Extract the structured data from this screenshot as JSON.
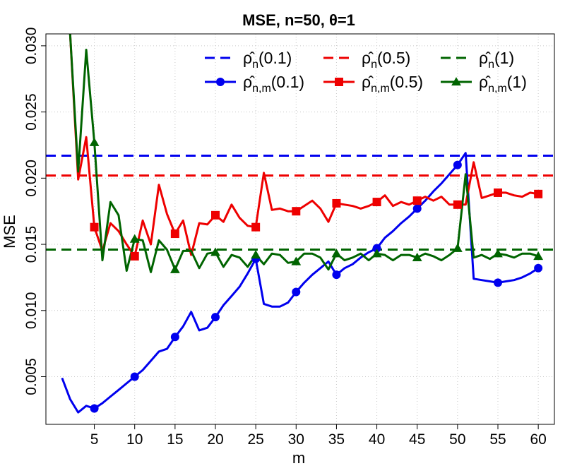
{
  "chart_data": {
    "type": "line",
    "title": "MSE, n=50, θ=1",
    "xlabel": "m",
    "ylabel": "MSE",
    "xlim": [
      -1,
      62
    ],
    "ylim": [
      0.0014,
      0.0309
    ],
    "xticks": [
      5,
      10,
      15,
      20,
      25,
      30,
      35,
      40,
      45,
      50,
      55,
      60
    ],
    "xtick_labels": [
      "5",
      "10",
      "15",
      "20",
      "25",
      "30",
      "35",
      "40",
      "45",
      "50",
      "55",
      "60"
    ],
    "yticks": [
      0.005,
      0.01,
      0.015,
      0.02,
      0.025,
      0.03
    ],
    "ytick_labels": [
      "0.005",
      "0.010",
      "0.015",
      "0.020",
      "0.025",
      "0.030"
    ],
    "grid": true,
    "legend_position": "top-right",
    "colors": {
      "blue": "#0000ee",
      "red": "#ee0000",
      "green": "#006400"
    },
    "reference_lines": [
      {
        "name": "ρ̂n(0.1)",
        "legend_base": "ρ̂",
        "legend_sub": "n",
        "legend_arg": "(0.1)",
        "color": "#0000ee",
        "y": 0.0217
      },
      {
        "name": "ρ̂n(0.5)",
        "legend_base": "ρ̂",
        "legend_sub": "n",
        "legend_arg": "(0.5)",
        "color": "#ee0000",
        "y": 0.0202
      },
      {
        "name": "ρ̂n(1)",
        "legend_base": "ρ̂",
        "legend_sub": "n",
        "legend_arg": "(1)",
        "color": "#006400",
        "y": 0.0146
      }
    ],
    "series": [
      {
        "name": "ρ̂n,m(0.1)",
        "legend_base": "ρ̂",
        "legend_sub": "n,m",
        "legend_arg": "(0.1)",
        "color": "#0000ee",
        "marker": "circle",
        "x": [
          1,
          2,
          3,
          4,
          5,
          6,
          7,
          8,
          9,
          10,
          11,
          12,
          13,
          14,
          15,
          16,
          17,
          18,
          19,
          20,
          21,
          22,
          23,
          24,
          25,
          26,
          27,
          28,
          29,
          30,
          31,
          32,
          33,
          34,
          35,
          36,
          37,
          38,
          39,
          40,
          41,
          42,
          43,
          44,
          45,
          46,
          47,
          48,
          49,
          50,
          51,
          52,
          53,
          54,
          55,
          56,
          57,
          58,
          59,
          60
        ],
        "values": [
          0.0049,
          0.0033,
          0.0023,
          0.0028,
          0.0026,
          0.003,
          0.0035,
          0.004,
          0.0045,
          0.005,
          0.0055,
          0.0062,
          0.0069,
          0.0071,
          0.008,
          0.0088,
          0.0099,
          0.0085,
          0.0087,
          0.0095,
          0.0104,
          0.0111,
          0.0118,
          0.0128,
          0.0139,
          0.0105,
          0.0103,
          0.0103,
          0.0106,
          0.0114,
          0.0121,
          0.0127,
          0.0132,
          0.0137,
          0.0127,
          0.0132,
          0.0135,
          0.014,
          0.0144,
          0.0147,
          0.0155,
          0.016,
          0.0166,
          0.0171,
          0.0177,
          0.0183,
          0.019,
          0.0196,
          0.0203,
          0.021,
          0.0219,
          0.0124,
          0.0123,
          0.0122,
          0.0121,
          0.0122,
          0.0123,
          0.0125,
          0.0128,
          0.0132
        ],
        "marker_x": [
          5,
          10,
          15,
          20,
          25,
          30,
          35,
          40,
          45,
          50,
          55,
          60
        ]
      },
      {
        "name": "ρ̂n,m(0.5)",
        "legend_base": "ρ̂",
        "legend_sub": "n,m",
        "legend_arg": "(0.5)",
        "color": "#ee0000",
        "marker": "square",
        "x": [
          2,
          3,
          4,
          5,
          6,
          7,
          8,
          9,
          10,
          11,
          12,
          13,
          14,
          15,
          16,
          17,
          18,
          19,
          20,
          21,
          22,
          23,
          24,
          25,
          26,
          27,
          28,
          29,
          30,
          31,
          32,
          33,
          34,
          35,
          36,
          37,
          38,
          39,
          40,
          41,
          42,
          43,
          44,
          45,
          46,
          47,
          48,
          49,
          50,
          51,
          52,
          53,
          54,
          55,
          56,
          57,
          58,
          59,
          60
        ],
        "values": [
          0.0309,
          0.0199,
          0.0231,
          0.0163,
          0.0145,
          0.0166,
          0.016,
          0.015,
          0.0141,
          0.0168,
          0.015,
          0.0195,
          0.0173,
          0.0158,
          0.0168,
          0.0142,
          0.0166,
          0.0165,
          0.0172,
          0.0167,
          0.018,
          0.017,
          0.0164,
          0.0163,
          0.0204,
          0.0176,
          0.0177,
          0.0175,
          0.0175,
          0.0179,
          0.0183,
          0.0177,
          0.0167,
          0.0181,
          0.018,
          0.0179,
          0.0177,
          0.0179,
          0.0182,
          0.0187,
          0.0179,
          0.0182,
          0.018,
          0.0183,
          0.0186,
          0.0183,
          0.0186,
          0.018,
          0.018,
          0.018,
          0.0212,
          0.0185,
          0.0187,
          0.0189,
          0.0189,
          0.0187,
          0.0186,
          0.0189,
          0.0188
        ],
        "marker_x": [
          5,
          10,
          15,
          20,
          25,
          30,
          35,
          40,
          45,
          50,
          55,
          60
        ]
      },
      {
        "name": "ρ̂n,m(1)",
        "legend_base": "ρ̂",
        "legend_sub": "n,m",
        "legend_arg": "(1)",
        "color": "#006400",
        "marker": "triangle",
        "x": [
          2,
          3,
          4,
          5,
          6,
          7,
          8,
          9,
          10,
          11,
          12,
          13,
          14,
          15,
          16,
          17,
          18,
          19,
          20,
          21,
          22,
          23,
          24,
          25,
          26,
          27,
          28,
          29,
          30,
          31,
          32,
          33,
          34,
          35,
          36,
          37,
          38,
          39,
          40,
          41,
          42,
          43,
          44,
          45,
          46,
          47,
          48,
          49,
          50,
          51,
          52,
          53,
          54,
          55,
          56,
          57,
          58,
          59,
          60
        ],
        "values": [
          0.0309,
          0.0205,
          0.0297,
          0.0227,
          0.0138,
          0.0182,
          0.0172,
          0.013,
          0.0154,
          0.0153,
          0.0129,
          0.0153,
          0.0146,
          0.0131,
          0.0145,
          0.0145,
          0.0132,
          0.0143,
          0.0144,
          0.0133,
          0.0142,
          0.014,
          0.0133,
          0.0142,
          0.0135,
          0.0143,
          0.0142,
          0.0136,
          0.0137,
          0.0143,
          0.0143,
          0.014,
          0.0131,
          0.0143,
          0.0138,
          0.014,
          0.0143,
          0.0138,
          0.0143,
          0.0142,
          0.0138,
          0.0142,
          0.0142,
          0.014,
          0.0143,
          0.0141,
          0.0138,
          0.0142,
          0.0147,
          0.0203,
          0.014,
          0.0142,
          0.0139,
          0.0143,
          0.0142,
          0.014,
          0.0143,
          0.0143,
          0.0141
        ],
        "marker_x": [
          5,
          10,
          15,
          20,
          25,
          30,
          35,
          40,
          45,
          50,
          55,
          60
        ]
      }
    ]
  }
}
